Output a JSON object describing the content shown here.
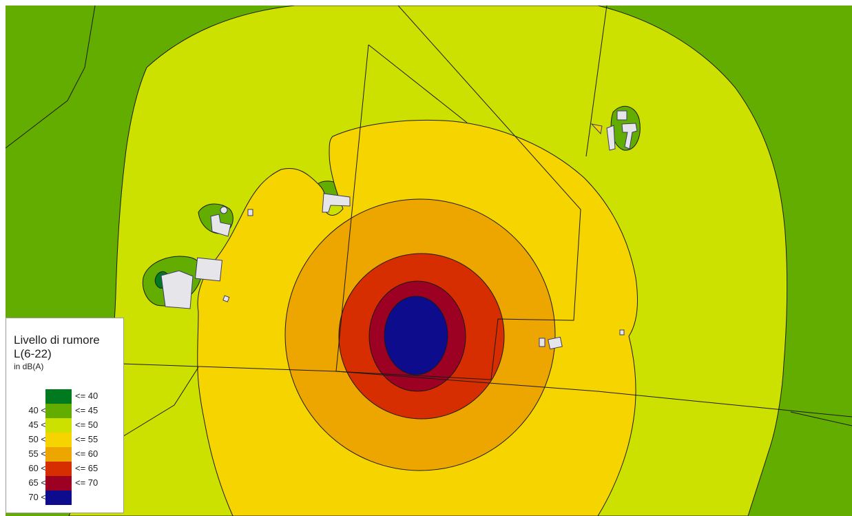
{
  "legend": {
    "title": "Livello di rumore",
    "subtitle": "L(6-22)",
    "unit": "in dB(A)",
    "classes": [
      {
        "low": "",
        "high": "<= 40",
        "color": "#007a1f"
      },
      {
        "low": "40 <",
        "high": "<= 45",
        "color": "#62ad00"
      },
      {
        "low": "45 <",
        "high": "<= 50",
        "color": "#cde100"
      },
      {
        "low": "50 <",
        "high": "<= 55",
        "color": "#f5d400"
      },
      {
        "low": "55 <",
        "high": "<= 60",
        "color": "#eda500"
      },
      {
        "low": "60 <",
        "high": "<= 65",
        "color": "#d62e00"
      },
      {
        "low": "65 <",
        "high": "<= 70",
        "color": "#9c0022"
      },
      {
        "low": "70 <",
        "high": "",
        "color": "#0d0c8c"
      }
    ]
  },
  "map": {
    "zone_colors": {
      "le_40": "#007a1f",
      "z40_45": "#62ad00",
      "z45_50": "#cde100",
      "z50_55": "#f5d400",
      "z55_60": "#eda500",
      "z60_65": "#d62e00",
      "z65_70": "#9c0022",
      "gt_70": "#0d0c8c"
    }
  }
}
